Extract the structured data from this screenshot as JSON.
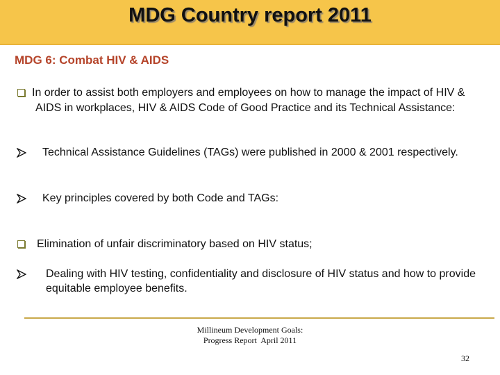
{
  "header": {
    "title": "MDG Country report 2011"
  },
  "subtitle": "MDG 6: Combat HIV & AIDS",
  "items": [
    "In order to assist both employers and employees on how to manage the impact of HIV & AIDS in workplaces, HIV & AIDS Code of Good Practice and its Technical Assistance:",
    "Technical Assistance Guidelines (TAGs) were published in 2000 & 2001 respectively.",
    "Key principles covered by both Code and TAGs:",
    "Elimination of unfair discriminatory based on HIV status;",
    "Dealing with HIV testing, confidentiality and disclosure of HIV status and how to provide equitable employee benefits."
  ],
  "footer": {
    "lines": [
      "Millineum Development Goals:",
      "Progress Report  April 2011"
    ],
    "page_number": 32
  }
}
